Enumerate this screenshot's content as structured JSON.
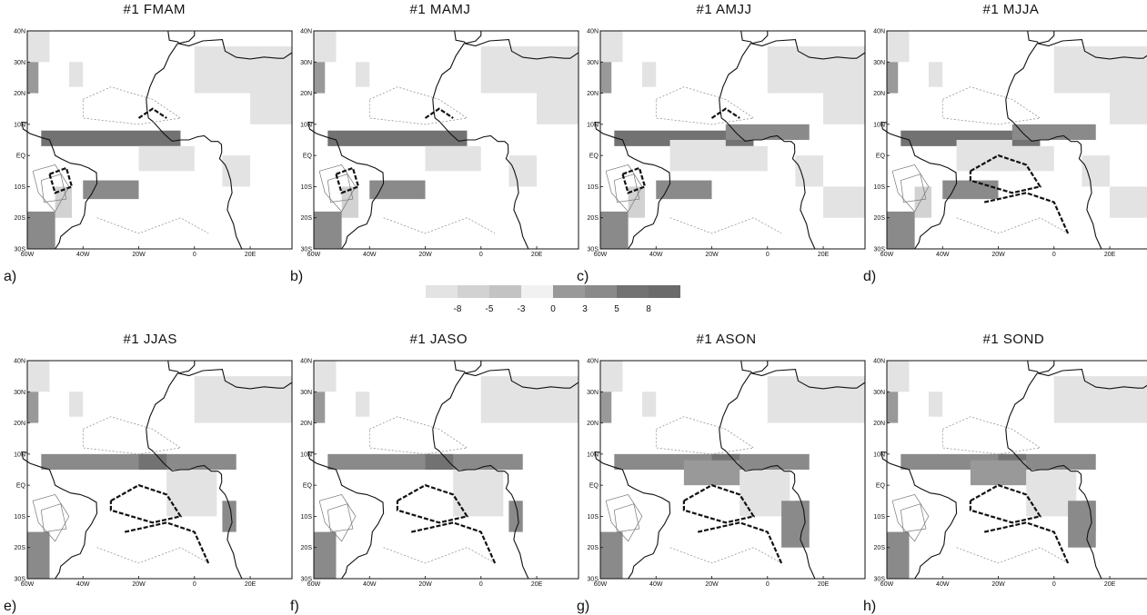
{
  "panels": [
    {
      "title": "#1 FMAM",
      "label": "a)"
    },
    {
      "title": "#1 MAMJ",
      "label": "b)"
    },
    {
      "title": "#1 AMJJ",
      "label": "c)"
    },
    {
      "title": "#1 MJJA",
      "label": "d)"
    },
    {
      "title": "#1 JJAS",
      "label": "e)"
    },
    {
      "title": "#1 JASO",
      "label": "f)"
    },
    {
      "title": "#1 ASON",
      "label": "g)"
    },
    {
      "title": "#1 SOND",
      "label": "h)"
    }
  ],
  "axes": {
    "lon_labels": [
      "60W",
      "40W",
      "20W",
      "0",
      "20E"
    ],
    "lat_labels": [
      "40N",
      "30N",
      "20N",
      "10N",
      "EQ",
      "10S",
      "20S",
      "30S"
    ],
    "lon_range": [
      -60,
      35
    ],
    "lat_range": [
      -30,
      40
    ]
  },
  "legend": {
    "ticks": [
      "-8",
      "-5",
      "-3",
      "0",
      "3",
      "5",
      "8"
    ],
    "colors": [
      "#e3e3e3",
      "#d2d2d2",
      "#c3c3c3",
      "#f1f1f1",
      "#999999",
      "#8a8a8a",
      "#727272"
    ]
  }
}
